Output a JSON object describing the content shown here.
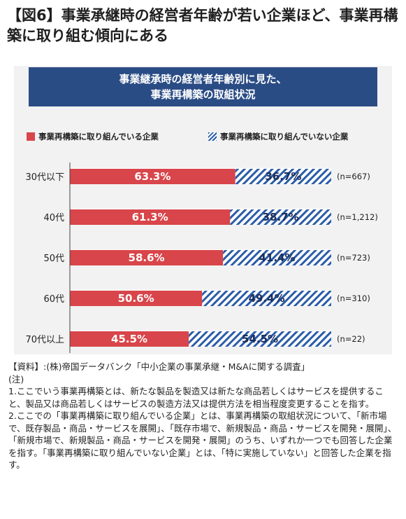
{
  "headline": "【図6】事業承継時の経営者年齢が若い企業ほど、事業再構築に取り組む傾向にある",
  "panel": {
    "title_line1": "事業継承時の経営者年齢別に見た、",
    "title_line2": "事業再構築の取組状況"
  },
  "legend": {
    "engaged": "事業再構築に取り組んでいる企業",
    "not_engaged": "事業再構築に取り組んでいない企業"
  },
  "colors": {
    "engaged": "#d8454a",
    "not_engaged": "#2a5ca8",
    "title_bg": "#2a4c85",
    "panel_bg": "#f2f2f2"
  },
  "chart_data": {
    "type": "bar",
    "orientation": "horizontal-stacked-100",
    "categories": [
      "30代以下",
      "40代",
      "50代",
      "60代",
      "70代以上"
    ],
    "series": [
      {
        "name": "事業再構築に取り組んでいる企業",
        "values": [
          63.3,
          61.3,
          58.6,
          50.6,
          45.5
        ],
        "labels": [
          "63.3%",
          "61.3%",
          "58.6%",
          "50.6%",
          "45.5%"
        ]
      },
      {
        "name": "事業再構築に取り組んでいない企業",
        "values": [
          36.7,
          38.7,
          41.4,
          49.4,
          54.5
        ],
        "labels": [
          "36.7%",
          "38.7%",
          "41.4%",
          "49.4%",
          "54.5%"
        ]
      }
    ],
    "sample_sizes": [
      "(n=667)",
      "(n=1,212)",
      "(n=723)",
      "(n=310)",
      "(n=22)"
    ],
    "xlim": [
      0,
      100
    ],
    "legend_position": "top"
  },
  "notes": {
    "source": "【資料】:(株)帝国データバンク「中小企業の事業承継・M&Aに関する調査」",
    "label": "(注)",
    "note1": "1.ここでいう事業再構築とは、新たな製品を製造又は新たな商品若しくはサービスを提供すること、製品又は商品若しくはサービスの製造方法又は提供方法を相当程度変更することを指す。",
    "note2": "2.ここでの「事業再構築に取り組んでいる企業」とは、事業再構築の取組状況について、「新市場で、既存製品・商品・サービスを展開」、「既存市場で、新規製品・商品・サービスを開発・展開」、「新規市場で、新規製品・商品・サービスを開発・展開」のうち、いずれか一つでも回答した企業を指す。「事業再構築に取り組んでいない企業」とは、「特に実施していない」と回答した企業を指す。"
  }
}
